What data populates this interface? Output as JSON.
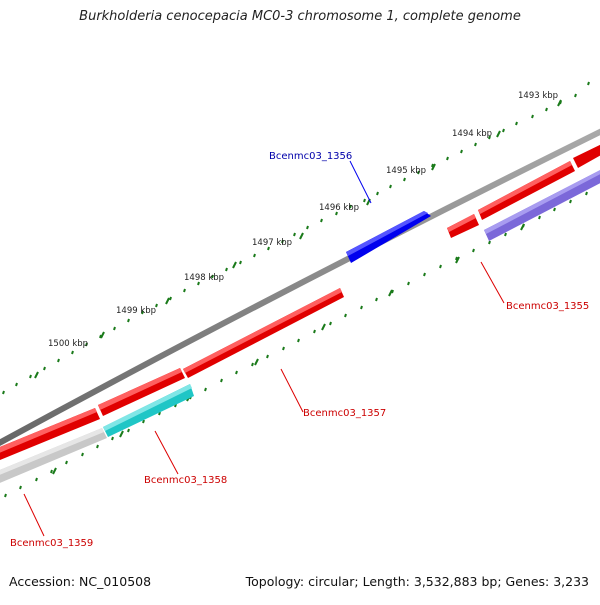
{
  "title": "Burkholderia cenocepacia MC0-3 chromosome 1, complete genome",
  "footer": {
    "accession": "Accession: NC_010508",
    "summary": "Topology: circular; Length: 3,532,883 bp; Genes: 3,233"
  },
  "ticks": [
    "1493 kbp",
    "1494 kbp",
    "1495 kbp",
    "1496 kbp",
    "1497 kbp",
    "1498 kbp",
    "1499 kbp",
    "1500 kbp"
  ],
  "genes": {
    "g1355": "Bcenmc03_1355",
    "g1356": "Bcenmc03_1356",
    "g1357": "Bcenmc03_1357",
    "g1358": "Bcenmc03_1358",
    "g1359": "Bcenmc03_1359"
  },
  "colors": {
    "backbone": "#808080",
    "cds_red": "#ff0000",
    "label_red": "#cc0000",
    "label_blue": "#0000aa",
    "cds_blue": "#0000ee",
    "cds_cyan": "#1fc6c6",
    "cds_purple": "#7b68d9",
    "cds_gray": "#c8c8c8",
    "tick_green": "#1a7a1a"
  }
}
